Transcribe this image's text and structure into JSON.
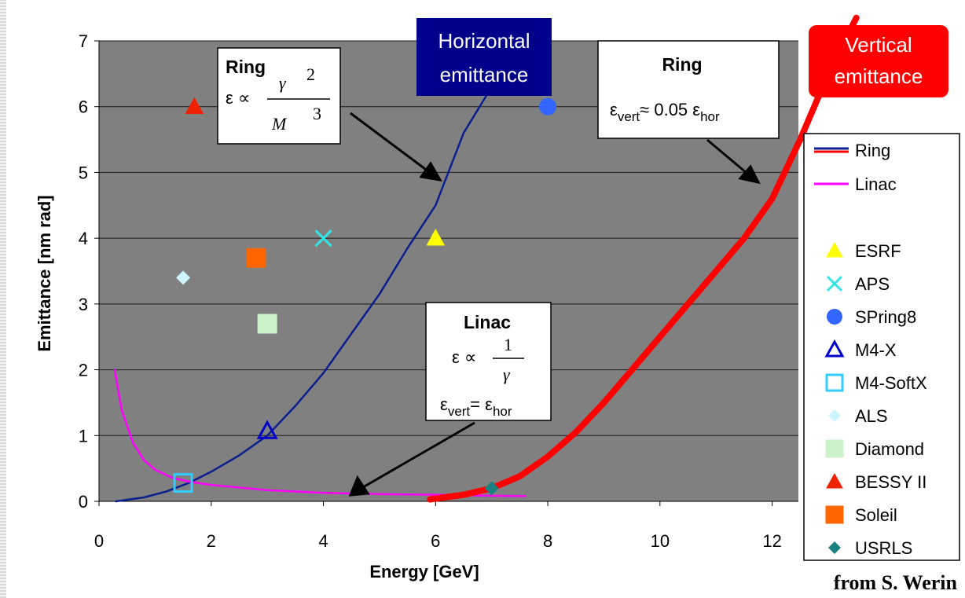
{
  "chart_data": {
    "type": "scatter",
    "xlabel": "Energy [GeV]",
    "ylabel": "Emittance  [nm rad]",
    "xlim": [
      0,
      13
    ],
    "ylim": [
      0,
      7
    ],
    "x_ticks": [
      "0",
      "2",
      "4",
      "6",
      "8",
      "10",
      "12"
    ],
    "y_ticks": [
      "0",
      "1",
      "2",
      "3",
      "4",
      "5",
      "6",
      "7"
    ],
    "grid": "horizontal",
    "plot_background": "#808080",
    "legend_position": "right",
    "series": [
      {
        "name": "Ring",
        "kind": "line",
        "color": "#0a1f8f",
        "points": [
          [
            0.3,
            0.0
          ],
          [
            0.8,
            0.06
          ],
          [
            1.2,
            0.15
          ],
          [
            1.6,
            0.28
          ],
          [
            2.0,
            0.45
          ],
          [
            2.5,
            0.7
          ],
          [
            3.0,
            1.0
          ],
          [
            3.5,
            1.45
          ],
          [
            4.0,
            1.95
          ],
          [
            4.5,
            2.55
          ],
          [
            5.0,
            3.15
          ],
          [
            5.5,
            3.85
          ],
          [
            6.0,
            4.5
          ],
          [
            6.5,
            5.6
          ],
          [
            7.0,
            6.3
          ]
        ]
      },
      {
        "name": "Linac",
        "kind": "line",
        "color": "#ff00ff",
        "points": [
          [
            0.28,
            2.0
          ],
          [
            0.4,
            1.4
          ],
          [
            0.6,
            0.9
          ],
          [
            0.8,
            0.63
          ],
          [
            1.0,
            0.48
          ],
          [
            1.3,
            0.36
          ],
          [
            1.6,
            0.3
          ],
          [
            2.0,
            0.25
          ],
          [
            3.0,
            0.17
          ],
          [
            4.0,
            0.13
          ],
          [
            5.0,
            0.11
          ],
          [
            6.0,
            0.1
          ],
          [
            7.0,
            0.085
          ],
          [
            7.6,
            0.08
          ]
        ]
      },
      {
        "name": "",
        "kind": "line",
        "color": "#ff0000",
        "points": [
          [
            5.9,
            0.03
          ],
          [
            6.5,
            0.1
          ],
          [
            7.0,
            0.2
          ],
          [
            7.5,
            0.38
          ],
          [
            8.0,
            0.68
          ],
          [
            8.5,
            1.05
          ],
          [
            9.0,
            1.5
          ],
          [
            9.5,
            2.0
          ],
          [
            10.0,
            2.5
          ],
          [
            10.5,
            3.0
          ],
          [
            11.0,
            3.5
          ],
          [
            11.5,
            4.0
          ],
          [
            12.0,
            4.6
          ],
          [
            12.5,
            5.5
          ],
          [
            13.0,
            6.5
          ],
          [
            13.5,
            7.35
          ]
        ]
      },
      {
        "name": "ESRF",
        "kind": "marker",
        "marker": "triangle",
        "color": "#ffff00",
        "x": 6.0,
        "y": 4.0
      },
      {
        "name": "APS",
        "kind": "marker",
        "marker": "x",
        "color": "#33e6e6",
        "x": 4.0,
        "y": 4.0
      },
      {
        "name": "SPring8",
        "kind": "marker",
        "marker": "circle",
        "color": "#3366ff",
        "x": 8.0,
        "y": 6.0
      },
      {
        "name": "M4-X",
        "kind": "marker",
        "marker": "triangle-open",
        "color": "#0000cc",
        "x": 3.0,
        "y": 1.07
      },
      {
        "name": "M4-SoftX",
        "kind": "marker",
        "marker": "square-open",
        "color": "#33ccff",
        "x": 1.5,
        "y": 0.28
      },
      {
        "name": "ALS",
        "kind": "marker",
        "marker": "diamond",
        "color": "#ccf5ff",
        "x": 1.5,
        "y": 3.4
      },
      {
        "name": "Diamond",
        "kind": "marker",
        "marker": "square",
        "color": "#ccf2cc",
        "x": 3.0,
        "y": 2.7
      },
      {
        "name": "BESSY II",
        "kind": "marker",
        "marker": "triangle",
        "color": "#ee2200",
        "x": 1.7,
        "y": 6.0
      },
      {
        "name": "Soleil",
        "kind": "marker",
        "marker": "square",
        "color": "#ff6600",
        "x": 2.8,
        "y": 3.7
      },
      {
        "name": "USRLS",
        "kind": "marker",
        "marker": "diamond",
        "color": "#1a8080",
        "x": 7.0,
        "y": 0.2
      }
    ]
  },
  "annotations": {
    "horizontal_callout": [
      "Horizontal",
      "emittance"
    ],
    "vertical_callout": [
      "Vertical",
      "emittance"
    ],
    "ring_formula_box": {
      "title": "Ring",
      "eps": "ε ∝",
      "numerator": "γ",
      "num_exp": "2",
      "denominator": "M",
      "den_exp": "3"
    },
    "ring_vertical_box": {
      "title": "Ring",
      "eps": "ε",
      "sub1": "vert",
      "mid": "≈ 0.05 ε",
      "sub2": "hor"
    },
    "linac_box": {
      "title": "Linac",
      "eps": "ε  ∝",
      "numerator": "1",
      "denominator": "γ",
      "eq_eps1": "ε",
      "eq_sub1": "vert",
      "eq_mid": "= ε",
      "eq_sub2": "hor"
    },
    "credit": "from S. Werin"
  },
  "colors": {
    "plot_bg": "#808080",
    "callout_blue": "#00008b",
    "callout_red": "#ff0000"
  }
}
